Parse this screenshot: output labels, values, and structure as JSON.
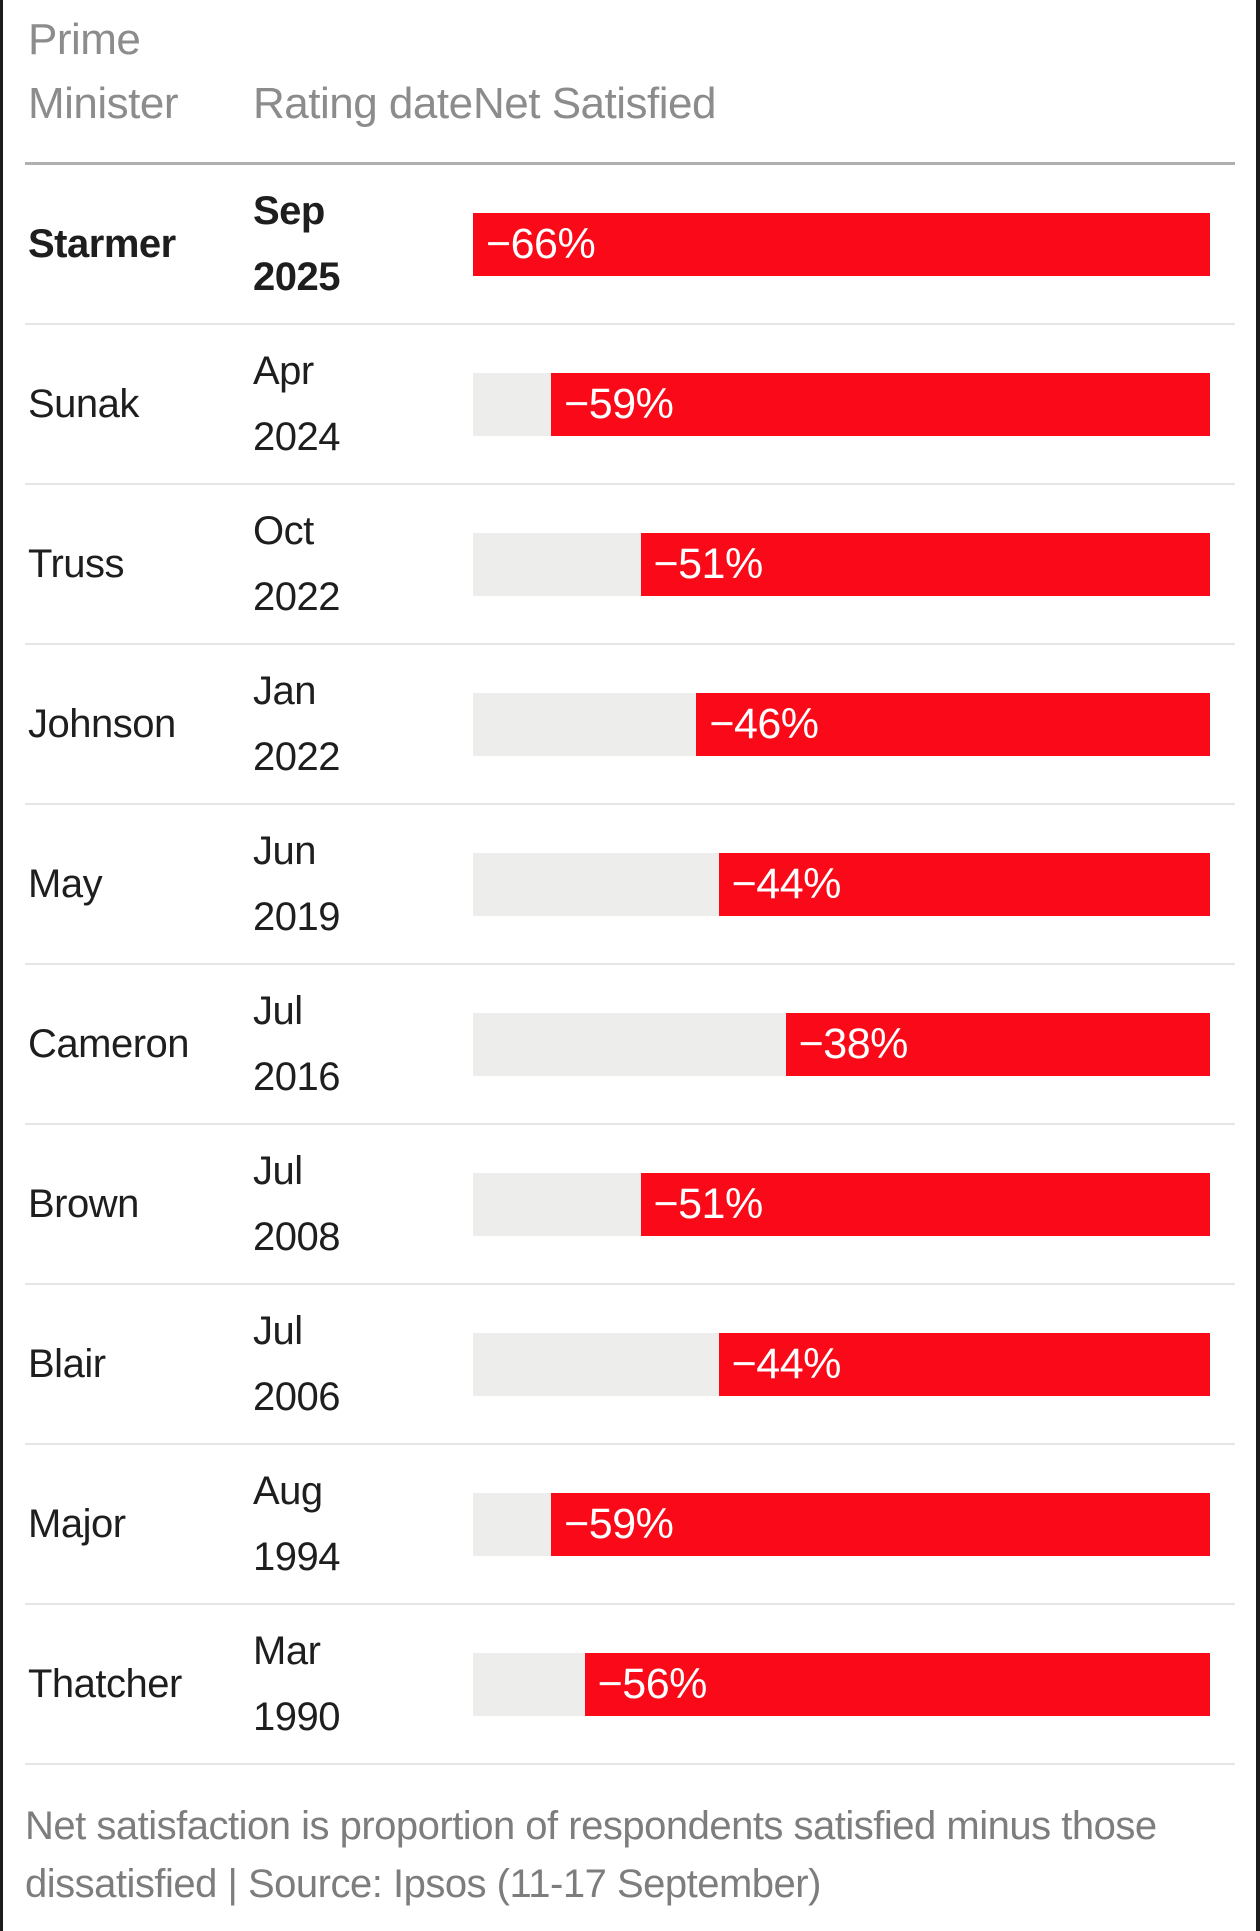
{
  "header": {
    "col_pm": "Prime Minister",
    "col_date": "Rating date",
    "col_net": "Net Satisfied"
  },
  "chart_data": {
    "type": "bar",
    "orientation": "horizontal-right-anchored",
    "title": "",
    "xlabel": "Net Satisfied",
    "xlim": [
      -66,
      0
    ],
    "grid": false,
    "legend": false,
    "bar_color": "#fa0a18",
    "track_color": "#ededec",
    "categories": [
      "Starmer",
      "Sunak",
      "Truss",
      "Johnson",
      "May",
      "Cameron",
      "Brown",
      "Blair",
      "Major",
      "Thatcher"
    ],
    "values": [
      -66,
      -59,
      -51,
      -46,
      -44,
      -38,
      -51,
      -44,
      -59,
      -56
    ],
    "rows": [
      {
        "name": "Starmer",
        "month": "Sep",
        "year": "2025",
        "value": -66,
        "label": "−66%",
        "bold": true
      },
      {
        "name": "Sunak",
        "month": "Apr",
        "year": "2024",
        "value": -59,
        "label": "−59%",
        "bold": false
      },
      {
        "name": "Truss",
        "month": "Oct",
        "year": "2022",
        "value": -51,
        "label": "−51%",
        "bold": false
      },
      {
        "name": "Johnson",
        "month": "Jan",
        "year": "2022",
        "value": -46,
        "label": "−46%",
        "bold": false
      },
      {
        "name": "May",
        "month": "Jun",
        "year": "2019",
        "value": -44,
        "label": "−44%",
        "bold": false
      },
      {
        "name": "Cameron",
        "month": "Jul",
        "year": "2016",
        "value": -38,
        "label": "−38%",
        "bold": false
      },
      {
        "name": "Brown",
        "month": "Jul",
        "year": "2008",
        "value": -51,
        "label": "−51%",
        "bold": false
      },
      {
        "name": "Blair",
        "month": "Jul",
        "year": "2006",
        "value": -44,
        "label": "−44%",
        "bold": false
      },
      {
        "name": "Major",
        "month": "Aug",
        "year": "1994",
        "value": -59,
        "label": "−59%",
        "bold": false
      },
      {
        "name": "Thatcher",
        "month": "Mar",
        "year": "1990",
        "value": -56,
        "label": "−56%",
        "bold": false
      }
    ]
  },
  "footer": {
    "note": "Net satisfaction is proportion of respondents satisfied minus those dissatisfied | Source: Ipsos (11-17 September)"
  },
  "colors": {
    "bar_red": "#fa0a18",
    "bar_track": "#ededec",
    "header_text": "#8c8c8c",
    "row_text": "#1e1e1e",
    "footnote_text": "#7d7d7d",
    "header_rule": "#b0b0b0",
    "row_rule": "#e6e6e6"
  }
}
